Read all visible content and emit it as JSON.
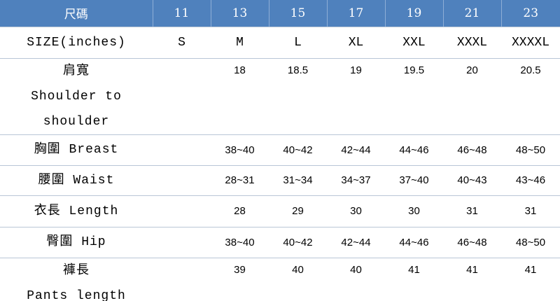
{
  "table": {
    "header": [
      "尺碼",
      "11",
      "13",
      "15",
      "17",
      "19",
      "21",
      "23"
    ],
    "rows": [
      [
        [
          "SIZE(inches)"
        ],
        "S",
        "M",
        "L",
        "XL",
        "XXL",
        "XXXL",
        "XXXXL"
      ],
      [
        [
          "肩寬",
          "Shoulder to",
          "shoulder"
        ],
        null,
        18,
        18.5,
        19,
        19.5,
        20,
        20.5
      ],
      [
        [
          "胸圍 Breast"
        ],
        null,
        "38~40",
        "40~42",
        "42~44",
        "44~46",
        "46~48",
        "48~50"
      ],
      [
        [
          "腰圍 Waist"
        ],
        null,
        "28~31",
        "31~34",
        "34~37",
        "37~40",
        "40~43",
        "43~46"
      ],
      [
        [
          "衣長 Length"
        ],
        null,
        28,
        29,
        30,
        30,
        31,
        31
      ],
      [
        [
          "臀圍 Hip"
        ],
        null,
        "38~40",
        "40~42",
        "42~44",
        "44~46",
        "46~48",
        "48~50"
      ],
      [
        [
          "褲長",
          "Pants length"
        ],
        null,
        39,
        40,
        40,
        41,
        41,
        41
      ]
    ]
  }
}
